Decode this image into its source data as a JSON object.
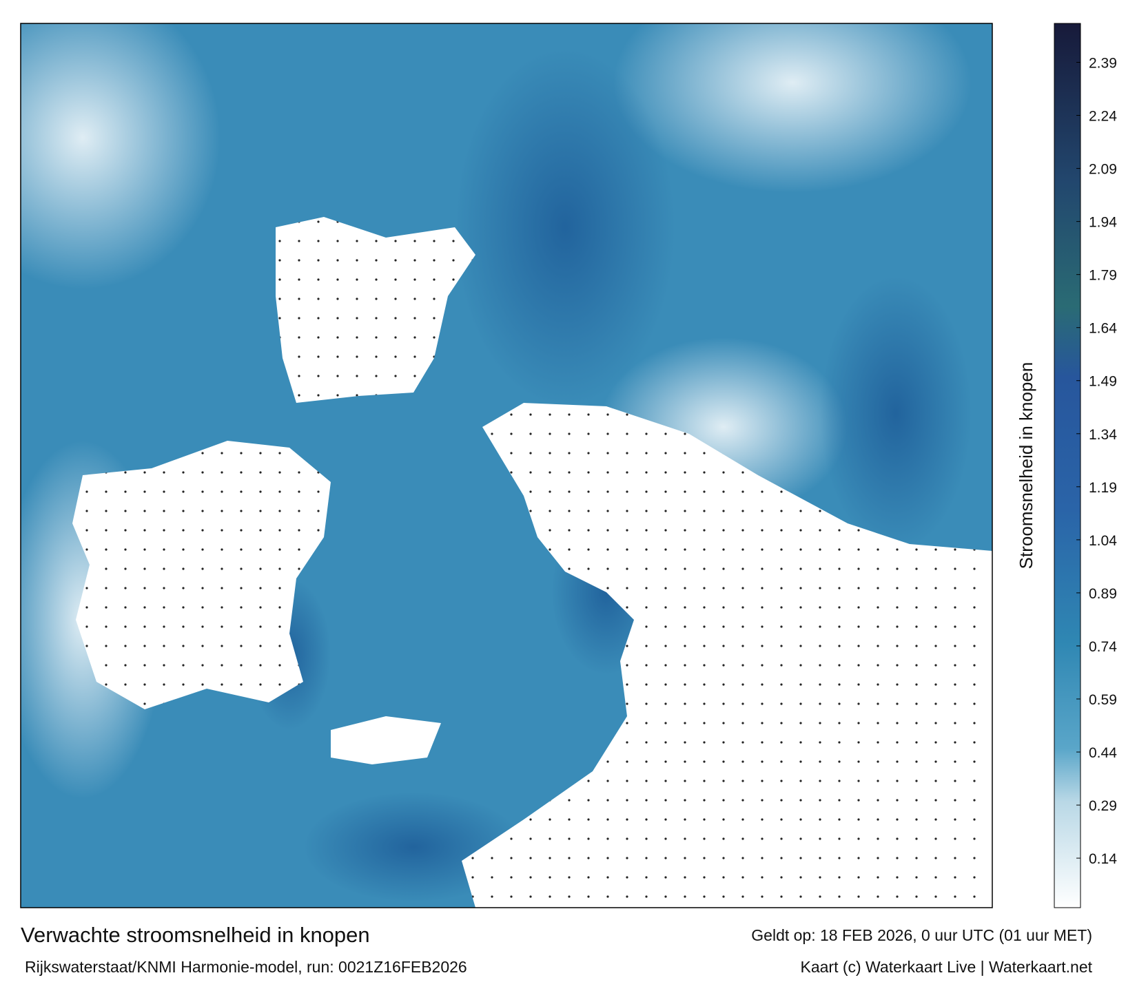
{
  "title": "Verwachte stroomsnelheid in knopen",
  "subtitle": "Rijkswaterstaat/KNMI Harmonie-model, run: 0021Z16FEB2026",
  "valid_time": "Geldt op: 18 FEB 2026, 0 uur UTC (01 uur MET)",
  "credit": "Kaart (c) Waterkaart Live | Waterkaart.net",
  "colorbar": {
    "label": "Stroomsnelheid in knopen",
    "lim": [
      0,
      2.5
    ],
    "ticks": [
      0.14,
      0.29,
      0.44,
      0.59,
      0.74,
      0.89,
      1.04,
      1.19,
      1.34,
      1.49,
      1.64,
      1.79,
      1.94,
      2.09,
      2.24,
      2.39
    ]
  }
}
